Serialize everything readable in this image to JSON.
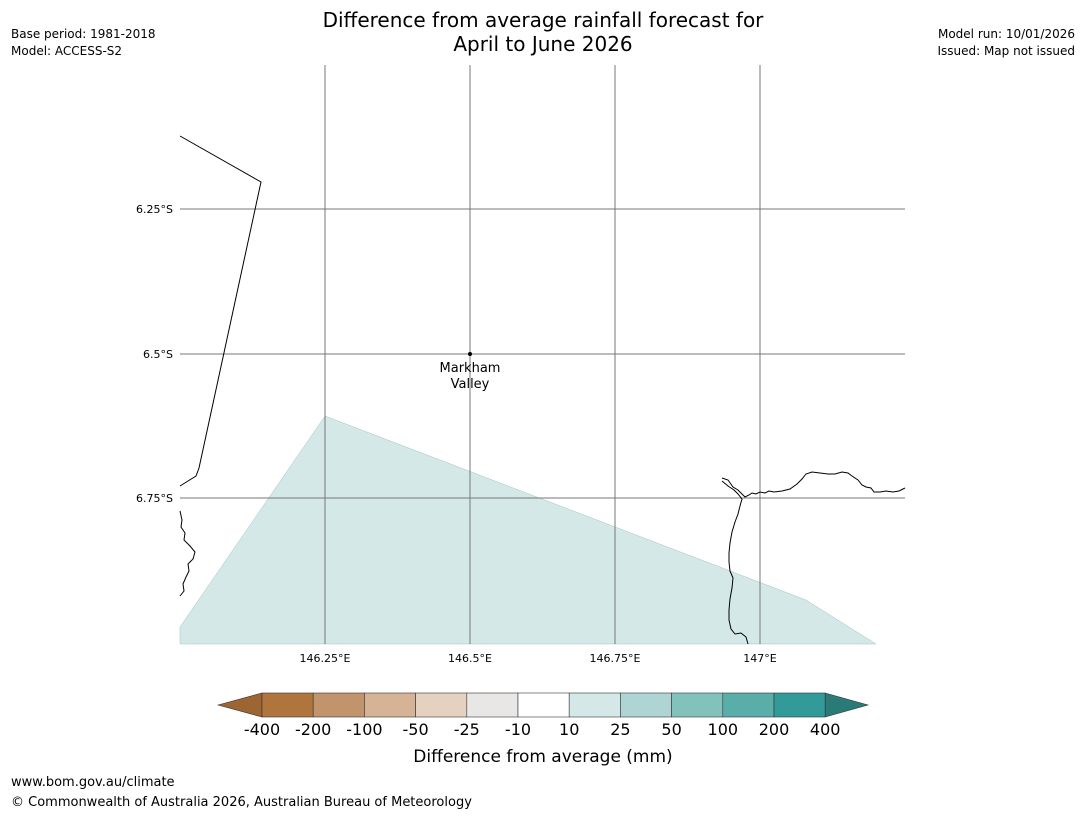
{
  "header": {
    "title_line1": "Difference from average rainfall forecast for",
    "title_line2": "April to June 2026",
    "base_period": "Base period: 1981-2018",
    "model": "Model: ACCESS-S2",
    "model_run": "Model run: 10/01/2026",
    "issued": "Issued: Map not issued"
  },
  "map": {
    "lat_labels": [
      "6.25°S",
      "6.5°S",
      "6.75°S"
    ],
    "lon_labels": [
      "146.25°E",
      "146.5°E",
      "146.75°E",
      "147°E"
    ],
    "place": {
      "name_line1": "Markham",
      "name_line2": "Valley",
      "lat": -6.5,
      "lon": 146.5
    },
    "forecast_category": "10 to 25",
    "forecast_color": "#d4e8e7"
  },
  "colorbar": {
    "title": "Difference from average (mm)",
    "ticks": [
      "-400",
      "-200",
      "-100",
      "-50",
      "-25",
      "-10",
      "10",
      "25",
      "50",
      "100",
      "200",
      "400"
    ],
    "colors": [
      "#9d6531",
      "#b0753d",
      "#c2946b",
      "#d5b394",
      "#e5d1bf",
      "#e8e7e5",
      "#ffffff",
      "#d4e8e7",
      "#aed5d3",
      "#83c1bd",
      "#5aaeaa",
      "#329a98",
      "#2a7a78"
    ]
  },
  "footer": {
    "url": "www.bom.gov.au/climate",
    "copyright": "© Commonwealth of Australia 2026, Australian Bureau of Meteorology"
  }
}
